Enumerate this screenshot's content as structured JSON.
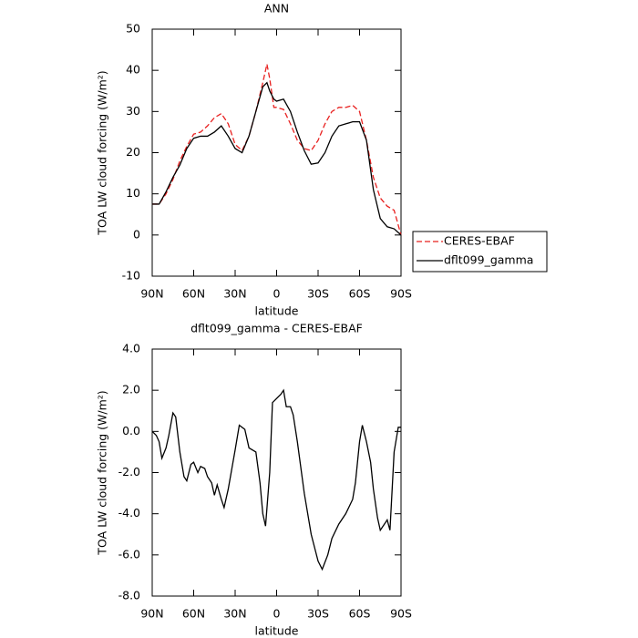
{
  "chart_data": [
    {
      "type": "line",
      "title": "ANN",
      "xlabel": "latitude",
      "ylabel": "TOA LW cloud forcing (W/m²)",
      "x": [
        90,
        85,
        80,
        75,
        70,
        65,
        60,
        55,
        50,
        45,
        40,
        35,
        30,
        25,
        20,
        15,
        10,
        7,
        5,
        2,
        0,
        -5,
        -10,
        -15,
        -20,
        -25,
        -30,
        -35,
        -40,
        -45,
        -50,
        -55,
        -60,
        -65,
        -70,
        -75,
        -80,
        -85,
        -90
      ],
      "series": [
        {
          "name": "CERES-EBAF",
          "color": "#e8201f",
          "dashed": true,
          "values": [
            7.5,
            7.5,
            10,
            13.5,
            18,
            21.5,
            24.5,
            25,
            26.5,
            28.5,
            29.5,
            27,
            22,
            20.5,
            24,
            30,
            37,
            41.5,
            38,
            31,
            31,
            30.5,
            27,
            23,
            21,
            20.5,
            23,
            27,
            30,
            31,
            31,
            31.5,
            30,
            23,
            14,
            9,
            7,
            6,
            0
          ]
        },
        {
          "name": "dflt099_gamma",
          "color": "#000000",
          "dashed": false,
          "values": [
            7.5,
            7.5,
            10.5,
            14,
            17,
            21,
            23.5,
            24,
            24,
            25,
            26.5,
            24,
            21,
            20,
            24,
            30,
            36,
            37,
            35,
            33,
            32.5,
            33,
            30,
            25,
            20.5,
            17.2,
            17.5,
            20,
            24,
            26.5,
            27,
            27.5,
            27.5,
            23,
            11,
            4,
            2,
            1.5,
            0
          ]
        }
      ],
      "xlim": [
        90,
        -90
      ],
      "xticks": [
        {
          "value": 90,
          "label": "90N"
        },
        {
          "value": 60,
          "label": "60N"
        },
        {
          "value": 30,
          "label": "30N"
        },
        0,
        {
          "value": -30,
          "label": "30S"
        },
        {
          "value": -60,
          "label": "60S"
        },
        {
          "value": -90,
          "label": "90S"
        }
      ],
      "ylim": [
        -10,
        50
      ],
      "yticks": [
        -10,
        0,
        10,
        20,
        30,
        40,
        50
      ],
      "legend": "right"
    },
    {
      "type": "line",
      "title": "dflt099_gamma - CERES-EBAF",
      "xlabel": "latitude",
      "ylabel": "TOA LW cloud forcing (W/m²)",
      "x": [
        90,
        87,
        85,
        83,
        80,
        78,
        75,
        73,
        70,
        67,
        65,
        62,
        60,
        57,
        55,
        52,
        50,
        47,
        45,
        43,
        40,
        38,
        35,
        30,
        27,
        23,
        20,
        15,
        12,
        10,
        8,
        5,
        3,
        0,
        -3,
        -5,
        -7,
        -10,
        -12,
        -15,
        -20,
        -25,
        -30,
        -33,
        -37,
        -40,
        -45,
        -50,
        -55,
        -57,
        -60,
        -62,
        -65,
        -68,
        -70,
        -73,
        -75,
        -78,
        -80,
        -82,
        -85,
        -88,
        -90
      ],
      "values": [
        0,
        -0.2,
        -0.5,
        -1.3,
        -0.8,
        -0.2,
        0.9,
        0.7,
        -1,
        -2.2,
        -2.4,
        -1.6,
        -1.5,
        -2,
        -1.7,
        -1.8,
        -2.2,
        -2.5,
        -3.1,
        -2.6,
        -3.3,
        -3.7,
        -2.8,
        -0.9,
        0.3,
        0.1,
        -0.8,
        -1,
        -2.5,
        -4,
        -4.6,
        -2,
        1.4,
        1.6,
        1.8,
        2,
        1.2,
        1.2,
        0.8,
        -0.5,
        -3,
        -5,
        -6.3,
        -6.7,
        -6,
        -5.2,
        -4.5,
        -4,
        -3.3,
        -2.5,
        -0.5,
        0.3,
        -0.5,
        -1.5,
        -2.8,
        -4.2,
        -4.8,
        -4.5,
        -4.3,
        -4.8,
        -1,
        0.2,
        0.2
      ],
      "color": "#000000",
      "xlim": [
        90,
        -90
      ],
      "xticks": [
        {
          "value": 90,
          "label": "90N"
        },
        {
          "value": 60,
          "label": "60N"
        },
        {
          "value": 30,
          "label": "30N"
        },
        0,
        {
          "value": -30,
          "label": "30S"
        },
        {
          "value": -60,
          "label": "60S"
        },
        {
          "value": -90,
          "label": "90S"
        }
      ],
      "ylim": [
        -8,
        4
      ],
      "yticks": [
        {
          "value": -8,
          "label": "-8.0"
        },
        {
          "value": -6,
          "label": "-6.0"
        },
        {
          "value": -4,
          "label": "-4.0"
        },
        {
          "value": -2,
          "label": "-2.0"
        },
        {
          "value": 0,
          "label": "0.0"
        },
        {
          "value": 2,
          "label": "2.0"
        },
        {
          "value": 4,
          "label": "4.0"
        }
      ]
    }
  ]
}
